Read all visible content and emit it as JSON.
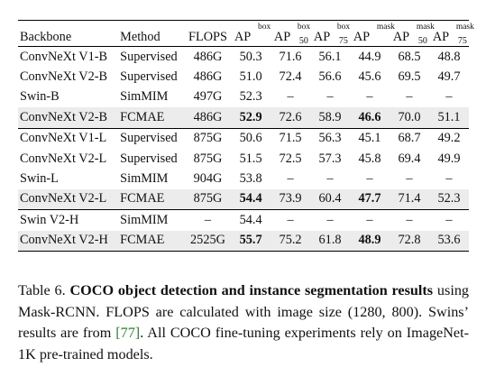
{
  "table": {
    "headers": {
      "backbone": "Backbone",
      "method": "Method",
      "flops": "FLOPS",
      "ap": "AP",
      "box": "box",
      "mask": "mask",
      "s50": "50",
      "s75": "75"
    },
    "rows": [
      [
        "ConvNeXt V1-B",
        "Supervised",
        "486G",
        "50.3",
        "71.6",
        "56.1",
        "44.9",
        "68.5",
        "48.8"
      ],
      [
        "ConvNeXt V2-B",
        "Supervised",
        "486G",
        "51.0",
        "72.4",
        "56.6",
        "45.6",
        "69.5",
        "49.7"
      ],
      [
        "Swin-B",
        "SimMIM",
        "497G",
        "52.3",
        "–",
        "–",
        "–",
        "–",
        "–"
      ],
      [
        "ConvNeXt V2-B",
        "FCMAE",
        "486G",
        "52.9",
        "72.6",
        "58.9",
        "46.6",
        "70.0",
        "51.1"
      ],
      [
        "ConvNeXt V1-L",
        "Supervised",
        "875G",
        "50.6",
        "71.5",
        "56.3",
        "45.1",
        "68.7",
        "49.2"
      ],
      [
        "ConvNeXt V2-L",
        "Supervised",
        "875G",
        "51.5",
        "72.5",
        "57.3",
        "45.8",
        "69.4",
        "49.9"
      ],
      [
        "Swin-L",
        "SimMIM",
        "904G",
        "53.8",
        "–",
        "–",
        "–",
        "–",
        "–"
      ],
      [
        "ConvNeXt V2-L",
        "FCMAE",
        "875G",
        "54.4",
        "73.9",
        "60.4",
        "47.7",
        "71.4",
        "52.3"
      ],
      [
        "Swin V2-H",
        "SimMIM",
        "–",
        "54.4",
        "–",
        "–",
        "–",
        "–",
        "–"
      ],
      [
        "ConvNeXt V2-H",
        "FCMAE",
        "2525G",
        "55.7",
        "75.2",
        "61.8",
        "48.9",
        "72.8",
        "53.6"
      ]
    ]
  },
  "caption": {
    "label": "Table 6.",
    "bold_title": "COCO object detection and instance segmentation results",
    "text_before_cite": "using Mask-RCNN. FLOPS are calculated with image size (1280, 800). Swins’ results are from",
    "cite": "[77]",
    "text_after_cite": ". All COCO fine-tuning experiments rely on ImageNet-1K pre-trained models."
  }
}
